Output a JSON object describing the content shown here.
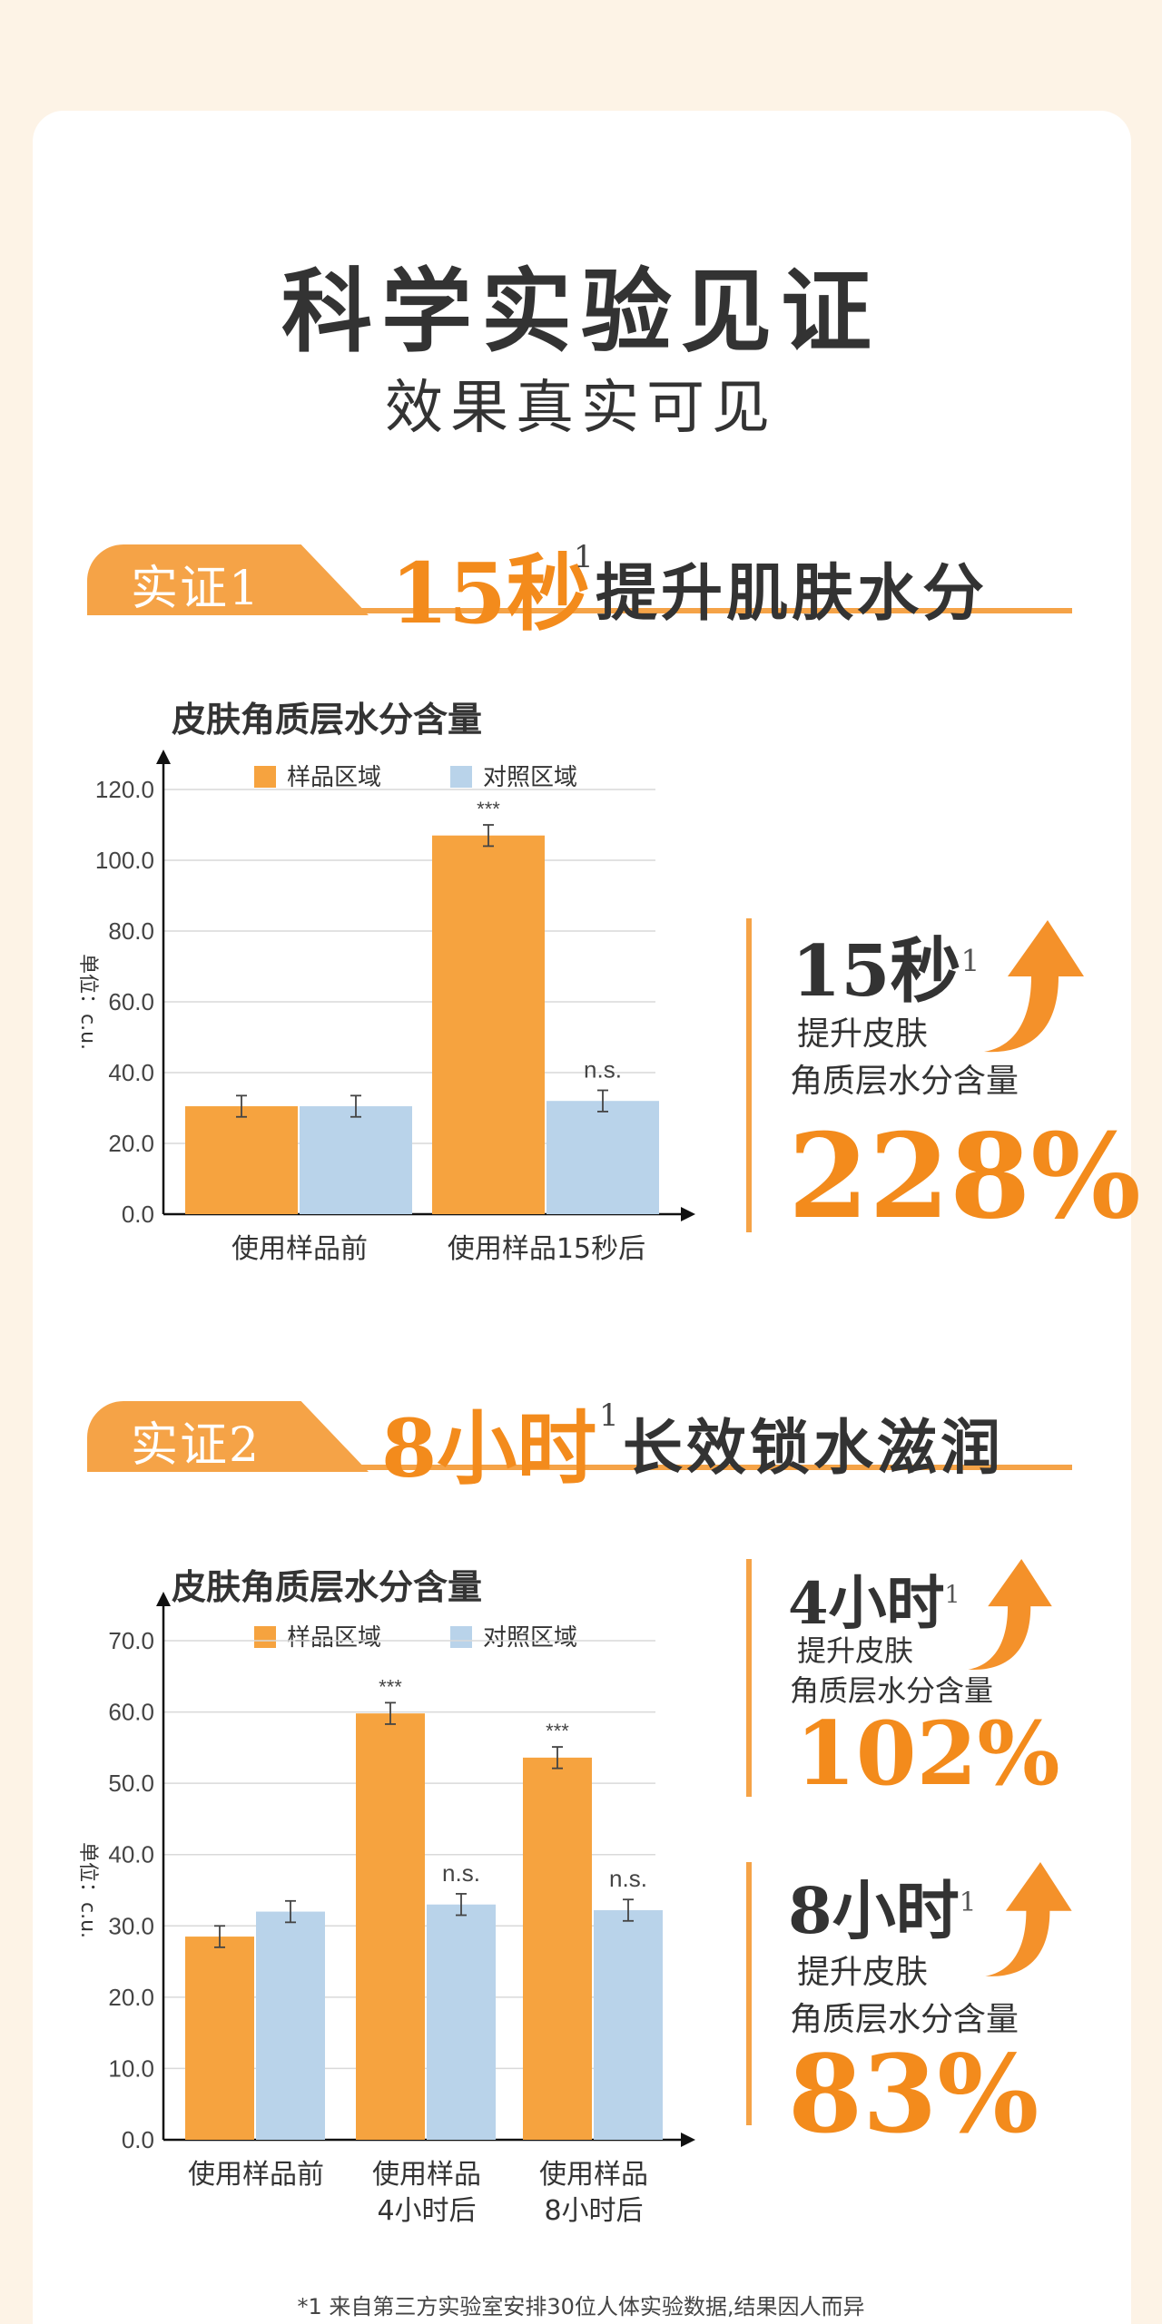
{
  "header": {
    "title": "科学实验见证",
    "subtitle": "效果真实可见"
  },
  "section1": {
    "tag": "实证1",
    "highlight": "15秒",
    "sup": "1",
    "text": "提升肌肤水分"
  },
  "section2": {
    "tag": "实证2",
    "highlight": "8小时",
    "sup": "1",
    "text": "长效锁水滋润"
  },
  "stats": {
    "s1": {
      "time": "15秒",
      "sup": "1",
      "desc1": "提升皮肤",
      "desc2": "角质层水分含量",
      "value": "228%"
    },
    "s2": {
      "time": "4小时",
      "sup": "1",
      "desc1": "提升皮肤",
      "desc2": "角质层水分含量",
      "value": "102%"
    },
    "s3": {
      "time": "8小时",
      "sup": "1",
      "desc1": "提升皮肤",
      "desc2": "角质层水分含量",
      "value": "83%"
    }
  },
  "footnote": "*1 来自第三方实验室安排30位人体实验数据,结果因人而异",
  "colors": {
    "accent": "#f5a347",
    "accent_text": "#f38b1c",
    "sample": "#f6a33f",
    "control": "#b9d3ea"
  },
  "chart_data": [
    {
      "type": "bar",
      "title": "皮肤角质层水分含量",
      "ylabel": "单位：c.u.",
      "ylim": [
        0,
        120
      ],
      "yticks": [
        "0.0",
        "20.0",
        "40.0",
        "60.0",
        "80.0",
        "100.0",
        "120.0"
      ],
      "categories": [
        [
          "使用样品前"
        ],
        [
          "使用样品15秒后"
        ]
      ],
      "series": [
        {
          "name": "样品区域",
          "values": [
            30.5,
            107
          ],
          "errors": [
            3,
            3
          ],
          "labels": [
            "",
            "***"
          ]
        },
        {
          "name": "对照区域",
          "values": [
            30.5,
            32
          ],
          "errors": [
            3,
            3
          ],
          "labels": [
            "",
            "n.s."
          ]
        }
      ],
      "legend": "top"
    },
    {
      "type": "bar",
      "title": "皮肤角质层水分含量",
      "ylabel": "单位：c.u.",
      "ylim": [
        0,
        70
      ],
      "yticks": [
        "0.0",
        "10.0",
        "20.0",
        "30.0",
        "40.0",
        "50.0",
        "60.0",
        "70.0"
      ],
      "categories": [
        [
          "使用样品前"
        ],
        [
          "使用样品",
          "4小时后"
        ],
        [
          "使用样品",
          "8小时后"
        ]
      ],
      "series": [
        {
          "name": "样品区域",
          "values": [
            28.5,
            59.8,
            53.6
          ],
          "errors": [
            1.5,
            1.5,
            1.5
          ],
          "labels": [
            "",
            "***",
            "***"
          ]
        },
        {
          "name": "对照区域",
          "values": [
            32,
            33,
            32.2
          ],
          "errors": [
            1.5,
            1.5,
            1.5
          ],
          "labels": [
            "",
            "n.s.",
            "n.s."
          ]
        }
      ],
      "legend": "top"
    }
  ]
}
